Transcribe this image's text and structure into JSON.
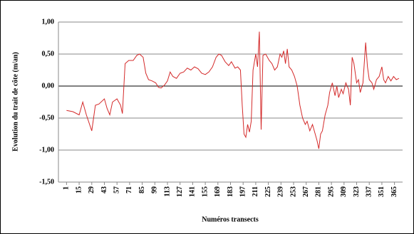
{
  "chart_data": {
    "type": "line",
    "y_label": "Evolution du trait de côte (m/an)",
    "x_label": "Numéros transects",
    "xlim": [
      -8,
      374
    ],
    "xticks": [
      1,
      15,
      29,
      43,
      57,
      71,
      85,
      99,
      113,
      127,
      141,
      155,
      169,
      183,
      197,
      211,
      225,
      239,
      253,
      267,
      281,
      295,
      309,
      323,
      337,
      351,
      365
    ],
    "ylim": [
      -1.5,
      1
    ],
    "yticks": [
      {
        "value": -1.5,
        "label": "-1,50"
      },
      {
        "value": -1,
        "label": "-1,00"
      },
      {
        "value": -0.5,
        "label": "-0,50"
      },
      {
        "value": 0,
        "label": "0,00"
      },
      {
        "value": 0.5,
        "label": "0,50"
      },
      {
        "value": 1,
        "label": "1,00"
      }
    ],
    "grid": true,
    "series": [
      {
        "color": "#d42a2a",
        "x": [
          1,
          8,
          15,
          19,
          23,
          29,
          33,
          37,
          43,
          46,
          49,
          52,
          57,
          61,
          63,
          66,
          70,
          75,
          79,
          82,
          86,
          89,
          92,
          96,
          100,
          103,
          106,
          110,
          113,
          116,
          119,
          123,
          127,
          131,
          135,
          139,
          143,
          147,
          151,
          155,
          159,
          163,
          167,
          170,
          173,
          177,
          181,
          184,
          188,
          191,
          194,
          196,
          198,
          200,
          202,
          204,
          206,
          208,
          211,
          213,
          215,
          217,
          219,
          222,
          226,
          229,
          232,
          235,
          238,
          240,
          242,
          244,
          246,
          248,
          251,
          254,
          257,
          260,
          263,
          266,
          268,
          271,
          274,
          277,
          279,
          281,
          283,
          285,
          288,
          291,
          293,
          296,
          299,
          301,
          303,
          306,
          308,
          311,
          314,
          316,
          318,
          320,
          323,
          325,
          327,
          330,
          333,
          335,
          337,
          340,
          342,
          345,
          348,
          351,
          353,
          355,
          358,
          361,
          364,
          367,
          370
        ],
        "values": [
          -0.38,
          -0.4,
          -0.45,
          -0.25,
          -0.45,
          -0.7,
          -0.3,
          -0.28,
          -0.2,
          -0.35,
          -0.45,
          -0.25,
          -0.2,
          -0.3,
          -0.43,
          0.35,
          0.4,
          0.4,
          0.48,
          0.5,
          0.45,
          0.2,
          0.1,
          0.08,
          0.05,
          -0.02,
          -0.03,
          0.02,
          0.08,
          0.22,
          0.15,
          0.12,
          0.2,
          0.22,
          0.28,
          0.25,
          0.3,
          0.27,
          0.2,
          0.18,
          0.22,
          0.3,
          0.45,
          0.5,
          0.48,
          0.38,
          0.32,
          0.38,
          0.28,
          0.3,
          0.25,
          -0.3,
          -0.75,
          -0.8,
          -0.6,
          -0.72,
          -0.55,
          0.25,
          0.5,
          0.3,
          0.85,
          -0.68,
          0.48,
          0.5,
          0.4,
          0.35,
          0.25,
          0.3,
          0.5,
          0.45,
          0.55,
          0.35,
          0.58,
          0.3,
          0.25,
          0.15,
          0.0,
          -0.3,
          -0.5,
          -0.6,
          -0.55,
          -0.7,
          -0.6,
          -0.75,
          -0.85,
          -0.98,
          -0.75,
          -0.7,
          -0.45,
          -0.3,
          -0.1,
          0.05,
          -0.15,
          0.0,
          -0.18,
          -0.05,
          -0.12,
          0.05,
          -0.05,
          -0.3,
          0.45,
          0.35,
          0.05,
          0.1,
          -0.1,
          0.05,
          0.68,
          0.3,
          0.1,
          0.05,
          -0.05,
          0.1,
          0.15,
          0.3,
          0.1,
          0.05,
          0.15,
          0.08,
          0.15,
          0.1,
          0.12
        ]
      }
    ]
  }
}
